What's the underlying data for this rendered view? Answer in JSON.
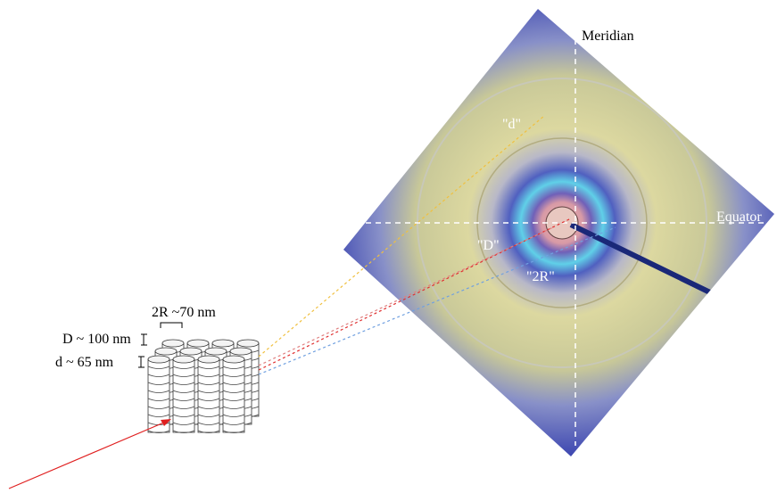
{
  "pattern": {
    "meridian": "Meridian",
    "equator": "Equator",
    "d_label": "\"d\"",
    "D_label": "\"D\"",
    "R_label": "\"2R\""
  },
  "sample": {
    "radius": "2R ~70 nm",
    "D_spacing": "D ~ 100 nm",
    "d_spacing": "d ~ 65 nm"
  }
}
